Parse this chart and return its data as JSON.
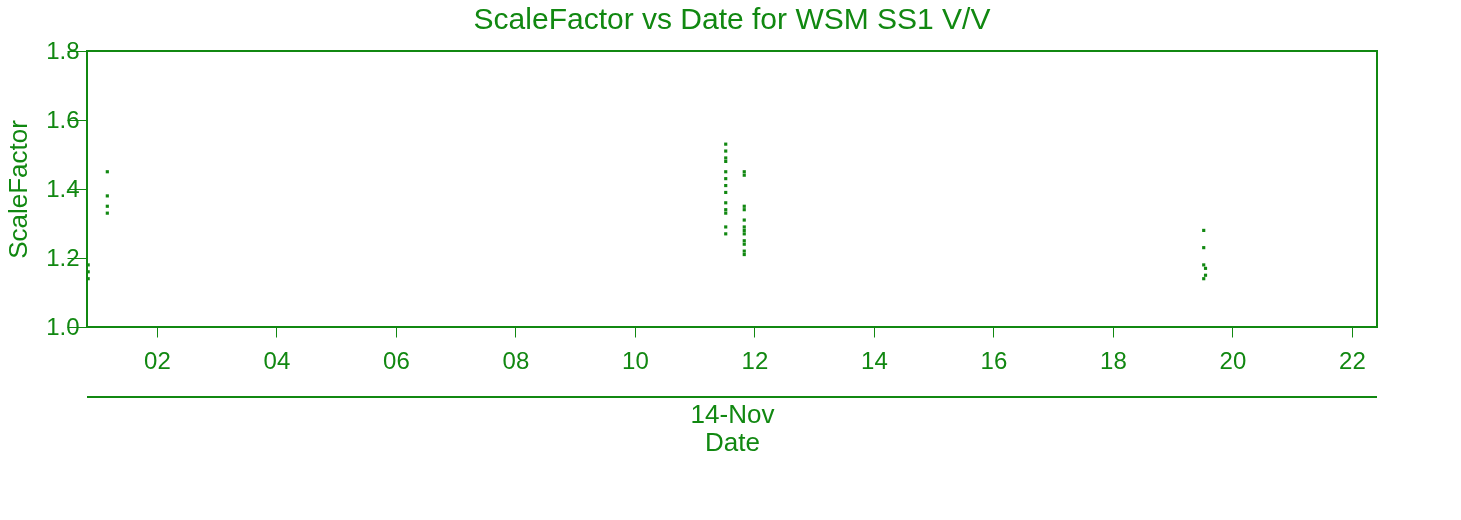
{
  "chart_data": {
    "type": "scatter",
    "title": "ScaleFactor vs Date for WSM SS1 V/V",
    "xlabel": "Date",
    "ylabel": "ScaleFactor",
    "annotations": [
      "14-Nov"
    ],
    "x": [
      0.85,
      0.85,
      0.85,
      1.17,
      1.17,
      1.17,
      1.17,
      11.52,
      11.52,
      11.52,
      11.52,
      11.52,
      11.52,
      11.52,
      11.52,
      11.52,
      11.52,
      11.52,
      11.52,
      11.52,
      11.83,
      11.83,
      11.83,
      11.83,
      11.83,
      11.83,
      11.83,
      11.83,
      11.83,
      11.83,
      11.83,
      11.83,
      19.52,
      19.52,
      19.52,
      19.55,
      19.55,
      19.52
    ],
    "values": [
      1.18,
      1.16,
      1.14,
      1.45,
      1.38,
      1.35,
      1.33,
      1.53,
      1.51,
      1.49,
      1.48,
      1.45,
      1.43,
      1.41,
      1.39,
      1.36,
      1.34,
      1.33,
      1.29,
      1.27,
      1.45,
      1.44,
      1.35,
      1.34,
      1.31,
      1.29,
      1.28,
      1.27,
      1.25,
      1.24,
      1.22,
      1.21,
      1.28,
      1.23,
      1.18,
      1.17,
      1.15,
      1.14
    ],
    "color": "#118811",
    "marker": "square",
    "xlim": [
      0.83,
      22.42
    ],
    "ylim": [
      1.0,
      1.8
    ],
    "xticks": [
      {
        "value": 2,
        "label": "02"
      },
      {
        "value": 4,
        "label": "04"
      },
      {
        "value": 6,
        "label": "06"
      },
      {
        "value": 8,
        "label": "08"
      },
      10,
      12,
      14,
      16,
      18,
      20,
      22
    ],
    "yticks": [
      {
        "value": 1.0,
        "label": "1.0"
      },
      1.2,
      1.4,
      1.6,
      1.8
    ],
    "grid": false
  }
}
